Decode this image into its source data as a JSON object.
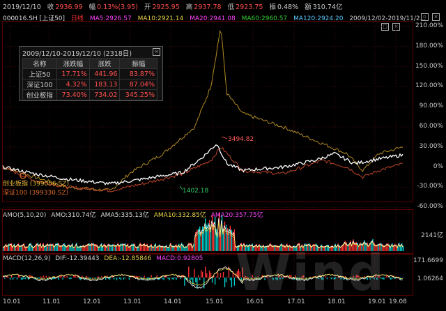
{
  "quote": {
    "date": "2019/12/10",
    "close_label": "收",
    "close_value": "2936.99",
    "change_label": "幅",
    "change_value": "0.13%(3.95)",
    "open_label": "开",
    "open_value": "2925.95",
    "high_label": "高",
    "high_value": "2937.78",
    "low_label": "低",
    "low_value": "2923.75",
    "amp_label": "振",
    "amp_value": "0.48%",
    "amount_label": "额",
    "amount_value": "310.74亿"
  },
  "indicators": {
    "code": "000016.SH [上证50]",
    "period": "日线",
    "ma5": "MA5:2926.57",
    "ma10": "MA10:2921.14",
    "ma20": "MA20:2941.08",
    "ma60": "MA60:2960.57",
    "ma120": "MA120:2924.20",
    "range": "2009/12/02-2019/11/2..."
  },
  "popup": {
    "title": "2009/12/10-2019/12/10 (2318日)",
    "headers": [
      "名称",
      "涨跌幅",
      "涨跌",
      "振幅"
    ],
    "rows": [
      [
        "上证50",
        "17.71%",
        "441.96",
        "83.87%"
      ],
      [
        "深证100",
        "4.32%",
        "183.13",
        "87.04%"
      ],
      [
        "创业板指",
        "73.40%",
        "734.02",
        "345.25%"
      ]
    ]
  },
  "annotations": {
    "peak": "3494.82",
    "low": "1402.18",
    "series1": "创业板指 (399006.SZ)",
    "series2": "深证100 (399330.SZ)"
  },
  "y_axis": [
    "210.00%",
    "180.00%",
    "150.00%",
    "120.00%",
    "90.00%",
    "60.00%",
    "30.00%",
    "0%",
    "-30.00%",
    "-60.00%"
  ],
  "amo": {
    "label": "AMO(5,10,20)",
    "amo": "AMO:310.74亿",
    "amo5": "AMA5:335.13亿",
    "amo10": "AMA10:332.85亿",
    "amo20": "AMA20:357.75亿",
    "axis": "2141亿"
  },
  "macd": {
    "label": "MACD(12,26,9)",
    "dif": "DIF:-12.39443",
    "dea": "DEA:-12.85846",
    "macd": "MACD:0.92805",
    "axis_top": "171.6699",
    "axis_mid": "1.06264"
  },
  "x_axis": [
    "10.01",
    "11.01",
    "12.01",
    "13.01",
    "14.01",
    "15.01",
    "16.01",
    "17.01",
    "18.01",
    "19.01",
    "19.08"
  ],
  "watermark": "Wind",
  "colors": {
    "up": "#ff3333",
    "down": "#00cccc",
    "yellow": "#e8d24a",
    "gold": "#b08a24",
    "orange": "#c0452a",
    "white": "#ffffff",
    "magenta": "#ff44ff",
    "green": "#33cc33"
  }
}
